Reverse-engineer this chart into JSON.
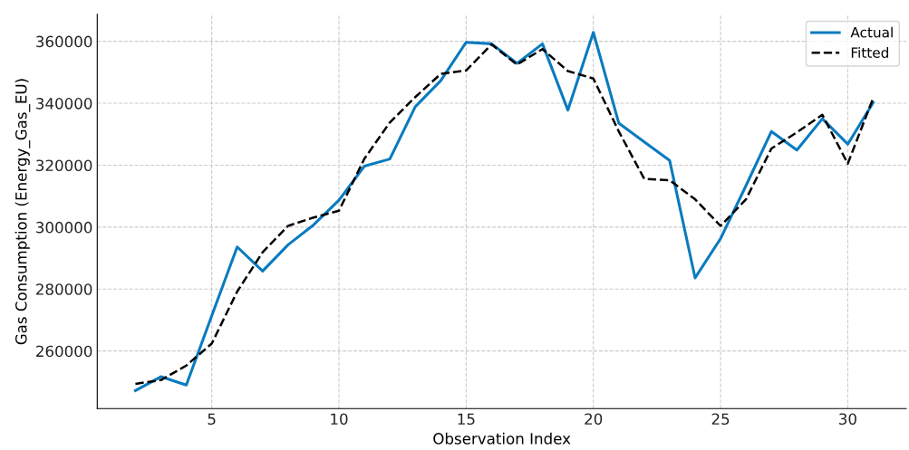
{
  "chart_data": {
    "type": "line",
    "xlabel": "Observation Index",
    "ylabel": "Gas Consumption (Energy_Gas_EU)",
    "x": [
      2,
      3,
      4,
      5,
      6,
      7,
      8,
      9,
      10,
      11,
      12,
      13,
      14,
      15,
      16,
      17,
      18,
      19,
      20,
      21,
      22,
      23,
      24,
      25,
      26,
      27,
      28,
      29,
      30,
      31
    ],
    "series": [
      {
        "name": "Actual",
        "color": "#0a7bbf",
        "line_style": "solid",
        "values": [
          247200,
          251700,
          249000,
          271400,
          293600,
          285800,
          294300,
          300700,
          308700,
          319700,
          322000,
          338900,
          347300,
          359700,
          359200,
          352900,
          359200,
          337800,
          362900,
          333600,
          327500,
          321500,
          283600,
          296300,
          313400,
          330900,
          324900,
          335000,
          326800,
          340200
        ]
      },
      {
        "name": "Fitted",
        "color": "#000000",
        "line_style": "dashed",
        "values": [
          249400,
          250600,
          255300,
          262400,
          279200,
          291900,
          300400,
          303100,
          305300,
          322100,
          333800,
          342000,
          349500,
          350600,
          359000,
          352500,
          357500,
          350400,
          348000,
          330900,
          315600,
          315100,
          309000,
          300400,
          309000,
          325400,
          330600,
          336300,
          320500,
          341700
        ]
      }
    ],
    "xlim": [
      0.5,
      32.3
    ],
    "ylim": [
      241400,
      368700
    ],
    "xticks": [
      5,
      10,
      15,
      20,
      25,
      30
    ],
    "yticks": [
      260000,
      280000,
      300000,
      320000,
      340000,
      360000
    ],
    "grid": true,
    "legend": "top right",
    "marker": "none"
  }
}
